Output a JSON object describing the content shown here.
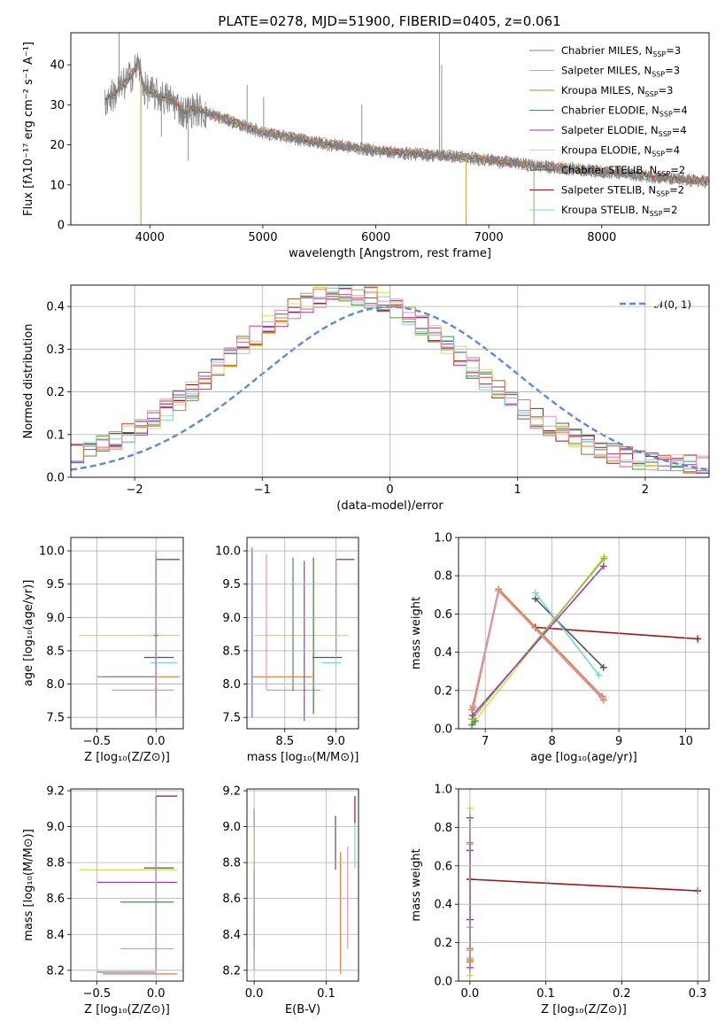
{
  "figure": {
    "title": "PLATE=0278, MJD=51900, FIBERID=0405, z=0.061"
  },
  "series_colors": {
    "Chabrier MILES": "#6b86c6",
    "Salpeter MILES": "#ec8fb8",
    "Kroupa MILES": "#b6882a",
    "Chabrier ELODIE": "#4f8c4f",
    "Salpeter ELODIE": "#9b37b6",
    "Kroupa ELODIE": "#d4e24a",
    "Chabrier STELIB": "#555555",
    "Salpeter STELIB": "#a21515",
    "Kroupa STELIB": "#77d3dc",
    "model_orange": "#e07a3c",
    "normal_curve": "#5b8bd6",
    "data_spectrum": "#808080"
  },
  "chart_data": [
    {
      "id": "spectrum",
      "type": "line",
      "xlabel": "wavelength [Angstrom, rest frame]",
      "ylabel": "Flux [fλ10⁻¹⁷ erg cm⁻² s⁻¹ A⁻¹]",
      "xlim": [
        3300,
        8950
      ],
      "ylim": [
        0,
        48
      ],
      "xticks": [
        4000,
        5000,
        6000,
        7000,
        8000
      ],
      "yticks": [
        0,
        10,
        20,
        30,
        40
      ],
      "grid": false,
      "legend_position": "top-right",
      "legend": [
        {
          "label": "Chabrier MILES, N",
          "sub": "SSP",
          "tail": "=3",
          "color": "#6b86c6"
        },
        {
          "label": "Salpeter MILES, N",
          "sub": "SSP",
          "tail": "=3",
          "color": "#ec8fb8"
        },
        {
          "label": "Kroupa MILES, N",
          "sub": "SSP",
          "tail": "=3",
          "color": "#b6882a"
        },
        {
          "label": "Chabrier ELODIE, N",
          "sub": "SSP",
          "tail": "=4",
          "color": "#4f8c4f"
        },
        {
          "label": "Salpeter ELODIE, N",
          "sub": "SSP",
          "tail": "=4",
          "color": "#9b37b6"
        },
        {
          "label": "Kroupa ELODIE, N",
          "sub": "SSP",
          "tail": "=4",
          "color": "#d4e24a"
        },
        {
          "label": "Chabrier STELIB, N",
          "sub": "SSP",
          "tail": "=2",
          "color": "#555555"
        },
        {
          "label": "Salpeter STELIB, N",
          "sub": "SSP",
          "tail": "=2",
          "color": "#a21515"
        },
        {
          "label": "Kroupa STELIB, N",
          "sub": "SSP",
          "tail": "=2",
          "color": "#77d3dc"
        }
      ],
      "continuum": [
        [
          3600,
          31
        ],
        [
          3700,
          33
        ],
        [
          3800,
          36
        ],
        [
          3850,
          38
        ],
        [
          3900,
          40
        ],
        [
          3950,
          34
        ],
        [
          4000,
          33
        ],
        [
          4100,
          32
        ],
        [
          4200,
          31
        ],
        [
          4300,
          28
        ],
        [
          4400,
          29
        ],
        [
          4500,
          28
        ],
        [
          4600,
          27
        ],
        [
          4700,
          26
        ],
        [
          4800,
          25
        ],
        [
          4900,
          24
        ],
        [
          5000,
          23
        ],
        [
          5200,
          22
        ],
        [
          5400,
          21
        ],
        [
          5600,
          20
        ],
        [
          5800,
          19.3
        ],
        [
          6000,
          18.5
        ],
        [
          6200,
          18
        ],
        [
          6400,
          17.6
        ],
        [
          6600,
          17.3
        ],
        [
          6800,
          16.8
        ],
        [
          7000,
          16.2
        ],
        [
          7200,
          15.5
        ],
        [
          7400,
          14.8
        ],
        [
          7600,
          14.2
        ],
        [
          7800,
          13.8
        ],
        [
          8000,
          13.3
        ],
        [
          8200,
          12.8
        ],
        [
          8400,
          12.2
        ],
        [
          8600,
          11.5
        ],
        [
          8800,
          11
        ],
        [
          8950,
          10.8
        ]
      ],
      "spikes": [
        [
          3727,
          48
        ],
        [
          3920,
          0
        ],
        [
          4102,
          22
        ],
        [
          4340,
          16
        ],
        [
          4861,
          35
        ],
        [
          5007,
          32
        ],
        [
          5876,
          30
        ],
        [
          6563,
          48
        ],
        [
          6583,
          40
        ],
        [
          6800,
          0
        ],
        [
          7400,
          0
        ]
      ]
    },
    {
      "id": "residuals",
      "type": "step",
      "xlabel": "(data-model)/error",
      "ylabel": "Normed distribution",
      "xlim": [
        -2.5,
        2.5
      ],
      "ylim": [
        0,
        0.45
      ],
      "xticks": [
        -2,
        -1,
        0,
        1,
        2
      ],
      "xtick_labels": [
        "−2",
        "−1",
        "0",
        "1",
        "2"
      ],
      "yticks": [
        0.0,
        0.1,
        0.2,
        0.3,
        0.4
      ],
      "ytick_labels": [
        "0.0",
        "0.1",
        "0.2",
        "0.3",
        "0.4"
      ],
      "grid": true,
      "legend_position": "top-right",
      "legend": [
        {
          "label": "𝒩(0, 1)",
          "color": "#5b8bd6"
        }
      ],
      "bin_width": 0.1,
      "normal_mean": 0,
      "normal_sigma": 1
    },
    {
      "id": "z-age",
      "type": "errorbar",
      "xlabel": "Z [log₁₀(Z/Z⊙)]",
      "ylabel": "age  [log₁₀(age/yr)]",
      "xlim": [
        -0.72,
        0.23
      ],
      "ylim": [
        7.33,
        10.2
      ],
      "xticks": [
        -0.5,
        0.0
      ],
      "xtick_labels": [
        "−0.5",
        "0.0"
      ],
      "yticks": [
        7.5,
        8.0,
        8.5,
        9.0,
        9.5,
        10.0
      ],
      "ytick_labels": [
        "7.5",
        "8.0",
        "8.5",
        "9.0",
        "9.5",
        "10.0"
      ],
      "grid": true,
      "points": [
        {
          "c": "#a21515",
          "x": 0.0,
          "y": 9.87,
          "x0": 0.0,
          "x1": 0.2,
          "y0": 8.47,
          "y1": 9.87
        },
        {
          "c": "#d4e24a",
          "x": 0.0,
          "y": 8.73,
          "x0": -0.65,
          "x1": 0.2,
          "y0": 7.45,
          "y1": 10.0
        },
        {
          "c": "#555555",
          "x": 0.0,
          "y": 8.4,
          "x0": -0.1,
          "x1": 0.15,
          "y0": 7.9,
          "y1": 10.0
        },
        {
          "c": "#77d3dc",
          "x": 0.0,
          "y": 8.32,
          "x0": -0.05,
          "x1": 0.18,
          "y0": 7.8,
          "y1": 10.0
        },
        {
          "c": "#e07a3c",
          "x": 0.0,
          "y": 8.11,
          "x0": -0.45,
          "x1": 0.2,
          "y0": 7.5,
          "y1": 10.0
        },
        {
          "c": "#6b86c6",
          "x": 0.0,
          "y": 8.11,
          "x0": -0.5,
          "x1": 0.0,
          "y0": 8.11,
          "y1": 8.11
        },
        {
          "c": "#ec8fb8",
          "x": 0.0,
          "y": 7.91,
          "x0": -0.37,
          "x1": 0.15,
          "y0": 7.6,
          "y1": 9.9
        },
        {
          "c": "#4f8c4f",
          "x": 0.0,
          "y": 8.73,
          "x0": -0.02,
          "x1": 0.02,
          "y0": 7.5,
          "y1": 9.95
        },
        {
          "c": "#9b37b6",
          "x": 0.0,
          "y": 8.73,
          "x0": 0.0,
          "x1": 0.0,
          "y0": 7.5,
          "y1": 9.9
        }
      ]
    },
    {
      "id": "mass-age",
      "type": "errorbar",
      "xlabel": "mass [log₁₀(M/M⊙)]",
      "ylabel": "",
      "xlim": [
        8.13,
        9.22
      ],
      "ylim": [
        7.33,
        10.2
      ],
      "xticks": [
        8.5,
        9.0
      ],
      "xtick_labels": [
        "8.5",
        "9.0"
      ],
      "yticks": [
        7.5,
        8.0,
        8.5,
        9.0,
        9.5,
        10.0
      ],
      "ytick_labels": [
        "7.5",
        "8.0",
        "8.5",
        "9.0",
        "9.5",
        "10.0"
      ],
      "grid": true,
      "points": [
        {
          "c": "#a21515",
          "x": 9.0,
          "y": 9.87,
          "x0": 9.0,
          "x1": 9.18,
          "y0": 8.47,
          "y1": 9.87
        },
        {
          "c": "#d4e24a",
          "x": 8.76,
          "y": 8.73,
          "x0": 8.2,
          "x1": 9.12,
          "y0": 8.73,
          "y1": 8.73
        },
        {
          "c": "#555555",
          "x": 8.77,
          "y": 8.4,
          "x0": 8.77,
          "x1": 9.06,
          "y0": 8.4,
          "y1": 8.4
        },
        {
          "c": "#77d3dc",
          "x": 8.86,
          "y": 8.32,
          "x0": 8.86,
          "x1": 9.05,
          "y0": 8.32,
          "y1": 8.32
        },
        {
          "c": "#e07a3c",
          "x": 8.18,
          "y": 8.11,
          "x0": 8.18,
          "x1": 8.77,
          "y0": 7.5,
          "y1": 10.0
        },
        {
          "c": "#6b86c6",
          "x": 8.18,
          "y": 8.11,
          "x0": 8.18,
          "x1": 8.18,
          "y0": 7.5,
          "y1": 10.05
        },
        {
          "c": "#ec8fb8",
          "x": 8.32,
          "y": 7.91,
          "x0": 8.32,
          "x1": 8.85,
          "y0": 7.91,
          "y1": 9.95
        },
        {
          "c": "#4f8c4f",
          "x": 8.58,
          "y": 8.73,
          "x0": 8.58,
          "x1": 8.58,
          "y0": 7.9,
          "y1": 9.9
        },
        {
          "c": "#9b37b6",
          "x": 8.69,
          "y": 8.73,
          "x0": 8.69,
          "x1": 8.69,
          "y0": 7.45,
          "y1": 9.85
        },
        {
          "c": "#3a7a3a",
          "x": 8.78,
          "y": 8.73,
          "x0": 8.78,
          "x1": 8.78,
          "y0": 7.55,
          "y1": 9.9
        }
      ]
    },
    {
      "id": "age-weight",
      "type": "line",
      "xlabel": "age  [log₁₀(age/yr)]",
      "ylabel": "mass weight",
      "xlim": [
        6.6,
        10.35
      ],
      "ylim": [
        0.0,
        1.0
      ],
      "xticks": [
        7,
        8,
        9,
        10
      ],
      "xtick_labels": [
        "7",
        "8",
        "9",
        "10"
      ],
      "yticks": [
        0.0,
        0.2,
        0.4,
        0.6,
        0.8,
        1.0
      ],
      "ytick_labels": [
        "0.0",
        "0.2",
        "0.4",
        "0.6",
        "0.8",
        "1.0"
      ],
      "grid": true,
      "series": [
        {
          "c": "#a21515",
          "x": [
            7.75,
            10.18
          ],
          "y": [
            0.53,
            0.47
          ]
        },
        {
          "c": "#555555",
          "x": [
            7.75,
            8.77
          ],
          "y": [
            0.68,
            0.32
          ]
        },
        {
          "c": "#77d3dc",
          "x": [
            7.75,
            8.7
          ],
          "y": [
            0.71,
            0.28
          ]
        },
        {
          "c": "#d4e24a",
          "x": [
            6.82,
            8.78
          ],
          "y": [
            0.03,
            0.9
          ]
        },
        {
          "c": "#8fba3c",
          "x": [
            6.8,
            8.78
          ],
          "y": [
            0.05,
            0.89
          ]
        },
        {
          "c": "#9b37b6",
          "x": [
            6.81,
            8.77
          ],
          "y": [
            0.07,
            0.85
          ]
        },
        {
          "c": "#e07a3c",
          "x": [
            6.82,
            7.2,
            8.77
          ],
          "y": [
            0.11,
            0.72,
            0.15
          ]
        },
        {
          "c": "#b6882a",
          "x": [
            6.8,
            7.2,
            8.75
          ],
          "y": [
            0.1,
            0.73,
            0.17
          ]
        },
        {
          "c": "#ec8fb8",
          "x": [
            6.81,
            7.2,
            8.76
          ],
          "y": [
            0.12,
            0.72,
            0.16
          ]
        },
        {
          "c": "#4f8c4f",
          "x": [
            6.8,
            6.85
          ],
          "y": [
            0.02,
            0.04
          ]
        }
      ]
    },
    {
      "id": "z-mass",
      "type": "errorbar",
      "xlabel": "Z [log₁₀(Z/Z⊙)]",
      "ylabel": "mass [log₁₀(M/M⊙)]",
      "xlim": [
        -0.72,
        0.23
      ],
      "ylim": [
        8.14,
        9.21
      ],
      "xticks": [
        -0.5,
        0.0
      ],
      "xtick_labels": [
        "−0.5",
        "0.0"
      ],
      "yticks": [
        8.2,
        8.4,
        8.6,
        8.8,
        9.0,
        9.2
      ],
      "ytick_labels": [
        "8.2",
        "8.4",
        "8.6",
        "8.8",
        "9.0",
        "9.2"
      ],
      "grid": true,
      "points": [
        {
          "c": "#a21515",
          "x": 0.0,
          "y": 9.17,
          "x0": 0.0,
          "x1": 0.18,
          "y0": 9.02,
          "y1": 9.17
        },
        {
          "c": "#d4e24a",
          "x": 0.0,
          "y": 8.76,
          "x0": -0.65,
          "x1": 0.18,
          "y0": 8.76,
          "y1": 8.76
        },
        {
          "c": "#555555",
          "x": 0.0,
          "y": 8.77,
          "x0": -0.1,
          "x1": 0.15,
          "y0": 8.77,
          "y1": 8.77
        },
        {
          "c": "#9b37b6",
          "x": 0.0,
          "y": 8.69,
          "x0": -0.5,
          "x1": 0.18,
          "y0": 8.69,
          "y1": 8.69
        },
        {
          "c": "#4f8c4f",
          "x": 0.0,
          "y": 8.58,
          "x0": -0.3,
          "x1": 0.15,
          "y0": 8.58,
          "y1": 8.58
        },
        {
          "c": "#ec8fb8",
          "x": 0.0,
          "y": 8.32,
          "x0": -0.3,
          "x1": 0.15,
          "y0": 8.32,
          "y1": 8.32
        },
        {
          "c": "#e07a3c",
          "x": 0.0,
          "y": 8.18,
          "x0": -0.45,
          "x1": 0.18,
          "y0": 8.18,
          "y1": 8.18
        },
        {
          "c": "#6b86c6",
          "x": 0.0,
          "y": 8.19,
          "x0": -0.5,
          "x1": 0.0,
          "y0": 8.19,
          "y1": 8.19
        },
        {
          "c": "#77d3dc",
          "x": 0.0,
          "y": 8.86,
          "x0": 0.0,
          "x1": 0.0,
          "y0": 8.2,
          "y1": 9.05
        },
        {
          "c": "#9b37b6",
          "x": 0.0,
          "y": 8.69,
          "x0": 0.0,
          "x1": 0.0,
          "y0": 8.2,
          "y1": 9.05
        }
      ]
    },
    {
      "id": "ebv-mass",
      "type": "errorbar",
      "xlabel": "E(B-V)",
      "ylabel": "",
      "xlim": [
        -0.01,
        0.145
      ],
      "ylim": [
        8.14,
        9.21
      ],
      "xticks": [
        0.0,
        0.1
      ],
      "xtick_labels": [
        "0.0",
        "0.1"
      ],
      "yticks": [
        8.2,
        8.4,
        8.6,
        8.8,
        9.0,
        9.2
      ],
      "ytick_labels": [
        "8.2",
        "8.4",
        "8.6",
        "8.8",
        "9.0",
        "9.2"
      ],
      "grid": true,
      "points": [
        {
          "c": "#9b37b6",
          "x": 0.0,
          "y": 8.69,
          "x0": 0.0,
          "x1": 0.0,
          "y0": 8.32,
          "y1": 9.1
        },
        {
          "c": "#d4e24a",
          "x": 0.0,
          "y": 8.76,
          "x0": 0.0,
          "x1": 0.0,
          "y0": 8.55,
          "y1": 9.0
        },
        {
          "c": "#4f8c4f",
          "x": 0.0,
          "y": 8.58,
          "x0": 0.0,
          "x1": 0.0,
          "y0": 8.2,
          "y1": 8.76
        },
        {
          "c": "#555555",
          "x": 0.113,
          "y": 8.77,
          "x0": 0.113,
          "x1": 0.113,
          "y0": 8.76,
          "y1": 9.06
        },
        {
          "c": "#e07a3c",
          "x": 0.12,
          "y": 8.18,
          "x0": 0.12,
          "x1": 0.12,
          "y0": 8.18,
          "y1": 8.86
        },
        {
          "c": "#ec8fb8",
          "x": 0.13,
          "y": 8.32,
          "x0": 0.13,
          "x1": 0.13,
          "y0": 8.32,
          "y1": 8.89
        },
        {
          "c": "#77d3dc",
          "x": 0.14,
          "y": 8.86,
          "x0": 0.14,
          "x1": 0.14,
          "y0": 8.77,
          "y1": 9.05
        },
        {
          "c": "#a21515",
          "x": 0.14,
          "y": 9.17,
          "x0": 0.14,
          "x1": 0.14,
          "y0": 9.02,
          "y1": 9.17
        }
      ]
    },
    {
      "id": "z-weight",
      "type": "line",
      "xlabel": "Z [log₁₀(Z/Z⊙)]",
      "ylabel": "mass weight",
      "xlim": [
        -0.015,
        0.315
      ],
      "ylim": [
        0.0,
        1.0
      ],
      "xticks": [
        0.0,
        0.1,
        0.2,
        0.3
      ],
      "xtick_labels": [
        "0.0",
        "0.1",
        "0.2",
        "0.3"
      ],
      "yticks": [
        0.0,
        0.2,
        0.4,
        0.6,
        0.8,
        1.0
      ],
      "ytick_labels": [
        "0.0",
        "0.2",
        "0.4",
        "0.6",
        "0.8",
        "1.0"
      ],
      "grid": true,
      "series": [
        {
          "c": "#a21515",
          "x": [
            0.0,
            0.3
          ],
          "y": [
            0.53,
            0.47
          ]
        },
        {
          "c": "#d4e24a",
          "x": [
            0.0,
            0.0
          ],
          "y": [
            0.03,
            0.9
          ]
        },
        {
          "c": "#77d3dc",
          "x": [
            0.0,
            0.0
          ],
          "y": [
            0.28,
            0.71
          ]
        },
        {
          "c": "#555555",
          "x": [
            0.0,
            0.0
          ],
          "y": [
            0.32,
            0.68
          ]
        },
        {
          "c": "#e07a3c",
          "x": [
            0.0,
            0.0
          ],
          "y": [
            0.11,
            0.72
          ]
        },
        {
          "c": "#9b37b6",
          "x": [
            0.0,
            0.0
          ],
          "y": [
            0.07,
            0.85
          ]
        },
        {
          "c": "#ec8fb8",
          "x": [
            0.0,
            0.0
          ],
          "y": [
            0.12,
            0.16
          ]
        },
        {
          "c": "#b6882a",
          "x": [
            0.0,
            0.0
          ],
          "y": [
            0.1,
            0.17
          ]
        }
      ]
    }
  ]
}
